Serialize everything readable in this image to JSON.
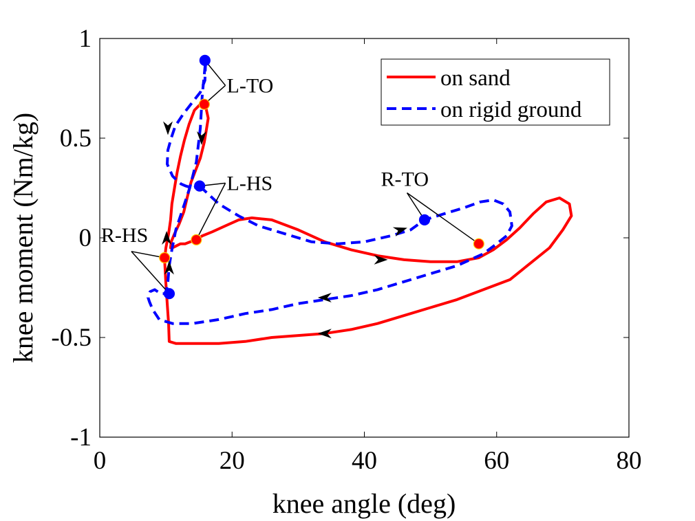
{
  "chart_data": {
    "type": "line",
    "title": "",
    "xlabel": "knee angle (deg)",
    "ylabel": "knee moment (Nm/kg)",
    "xlim": [
      0,
      80
    ],
    "ylim": [
      -1,
      1
    ],
    "xticks": [
      0,
      20,
      40,
      60,
      80
    ],
    "yticks": [
      -1,
      -0.5,
      0,
      0.5,
      1
    ],
    "xtick_labels": [
      "0",
      "20",
      "40",
      "60",
      "80"
    ],
    "ytick_labels": [
      "-1",
      "-0.5",
      "0",
      "0.5",
      "1"
    ],
    "legend_position": "top-right",
    "series": [
      {
        "name": "on sand",
        "color": "#ff0000",
        "style": "solid",
        "x": [
          14.6,
          15.5,
          17,
          19,
          21,
          23,
          26,
          30,
          34,
          38,
          42,
          46,
          50,
          54,
          57.3,
          59.5,
          61.5,
          63.5,
          65.5,
          67.5,
          69.5,
          71,
          71.3,
          70,
          68,
          65,
          62,
          58,
          54,
          50,
          46,
          42,
          38,
          34,
          30,
          26,
          22,
          18,
          14,
          11.5,
          10.5,
          10.4,
          10.2,
          10,
          9.8,
          10,
          10.4,
          10.7,
          10.9,
          11.3,
          11.7,
          12.2,
          12.8,
          13.5,
          14.3,
          15.2,
          16,
          16.4,
          16.1,
          15.8,
          15.2,
          14.5,
          13.8,
          13.2,
          12.7,
          12,
          11.3,
          10.8,
          10.7,
          11,
          11.6,
          12.2,
          12.9,
          13.7,
          14.6
        ],
        "y": [
          -0.01,
          0.01,
          0.03,
          0.06,
          0.09,
          0.1,
          0.09,
          0.04,
          -0.02,
          -0.06,
          -0.09,
          -0.11,
          -0.12,
          -0.12,
          -0.1,
          -0.06,
          -0.01,
          0.05,
          0.12,
          0.18,
          0.2,
          0.17,
          0.11,
          0.04,
          -0.05,
          -0.13,
          -0.21,
          -0.26,
          -0.31,
          -0.35,
          -0.39,
          -0.43,
          -0.46,
          -0.48,
          -0.49,
          -0.5,
          -0.52,
          -0.53,
          -0.53,
          -0.53,
          -0.52,
          -0.43,
          -0.33,
          -0.23,
          -0.11,
          -0.05,
          0.02,
          0.09,
          0.17,
          0.25,
          0.33,
          0.41,
          0.49,
          0.57,
          0.64,
          0.67,
          0.66,
          0.6,
          0.54,
          0.48,
          0.4,
          0.34,
          0.28,
          0.2,
          0.13,
          0.07,
          0.02,
          -0.02,
          -0.05,
          -0.05,
          -0.04,
          -0.03,
          -0.03,
          -0.02,
          -0.01
        ]
      },
      {
        "name": "on rigid ground",
        "color": "#0000ff",
        "style": "dashed",
        "x": [
          15.1,
          18,
          21,
          24,
          28,
          32,
          36,
          40,
          44,
          47,
          49.1,
          52,
          55,
          57.5,
          59.5,
          61,
          62,
          62.3,
          61.5,
          60,
          58,
          54,
          50,
          46,
          42,
          38,
          34,
          30,
          26,
          22,
          18,
          14,
          11,
          9,
          8,
          7.5,
          7.3,
          7.6,
          8.3,
          9.2,
          10,
          10.3,
          10.5,
          10.9,
          11.5,
          12.5,
          13.6,
          14.6,
          15.2,
          15.5,
          15.8,
          16,
          15.9,
          15.2,
          14,
          12.6,
          11.4,
          10.8,
          10.3,
          10.2,
          10.6,
          11,
          11.6,
          12.3,
          13,
          14,
          15.1
        ],
        "y": [
          0.26,
          0.17,
          0.11,
          0.06,
          0.02,
          -0.02,
          -0.03,
          -0.02,
          0.01,
          0.04,
          0.09,
          0.12,
          0.15,
          0.18,
          0.19,
          0.17,
          0.13,
          0.06,
          0.01,
          -0.03,
          -0.08,
          -0.14,
          -0.18,
          -0.22,
          -0.26,
          -0.29,
          -0.31,
          -0.33,
          -0.36,
          -0.38,
          -0.41,
          -0.43,
          -0.43,
          -0.41,
          -0.36,
          -0.32,
          -0.3,
          -0.27,
          -0.26,
          -0.28,
          -0.28,
          -0.22,
          -0.14,
          -0.06,
          0.04,
          0.14,
          0.25,
          0.38,
          0.55,
          0.72,
          0.82,
          0.89,
          0.79,
          0.73,
          0.68,
          0.62,
          0.56,
          0.5,
          0.44,
          0.37,
          0.34,
          0.31,
          0.29,
          0.27,
          0.26,
          0.25,
          0.26
        ]
      }
    ],
    "markers": [
      {
        "series": "on sand",
        "label": "L-TO",
        "x": 15.8,
        "y": 0.67
      },
      {
        "series": "on sand",
        "label": "L-HS",
        "x": 14.6,
        "y": -0.01
      },
      {
        "series": "on sand",
        "label": "R-TO",
        "x": 57.3,
        "y": -0.03
      },
      {
        "series": "on sand",
        "label": "R-HS",
        "x": 9.8,
        "y": -0.1
      },
      {
        "series": "on rigid ground",
        "label": "L-TO",
        "x": 15.9,
        "y": 0.89
      },
      {
        "series": "on rigid ground",
        "label": "L-HS",
        "x": 15.1,
        "y": 0.26
      },
      {
        "series": "on rigid ground",
        "label": "R-TO",
        "x": 49.1,
        "y": 0.09
      },
      {
        "series": "on rigid ground",
        "label": "R-HS",
        "x": 10.5,
        "y": -0.28
      }
    ],
    "annotations": [
      {
        "text": "L-TO",
        "x": 19.2,
        "y": 0.73,
        "targets": [
          [
            15.9,
            0.89
          ],
          [
            15.8,
            0.67
          ]
        ]
      },
      {
        "text": "L-HS",
        "x": 19.2,
        "y": 0.24,
        "targets": [
          [
            15.1,
            0.26
          ],
          [
            14.6,
            -0.01
          ]
        ]
      },
      {
        "text": "R-TO",
        "x": 42.5,
        "y": 0.26,
        "targets": [
          [
            49.1,
            0.09
          ],
          [
            57.3,
            -0.03
          ]
        ]
      },
      {
        "text": "R-HS",
        "x": 0.2,
        "y": -0.02,
        "targets": [
          [
            9.8,
            -0.1
          ],
          [
            10.5,
            -0.28
          ]
        ]
      }
    ],
    "direction_arrows": [
      {
        "series": "on sand",
        "x": 15.4,
        "y": 0.5,
        "dx": 0.0,
        "dy": -1
      },
      {
        "series": "on sand",
        "x": 42.5,
        "y": -0.11,
        "dx": 1,
        "dy": 0
      },
      {
        "series": "on sand",
        "x": 34,
        "y": -0.48,
        "dx": -1,
        "dy": 0
      },
      {
        "series": "on sand",
        "x": 10.1,
        "y": -0.0,
        "dx": 0,
        "dy": 1
      },
      {
        "series": "on rigid ground",
        "x": 10.3,
        "y": 0.55,
        "dx": 0,
        "dy": -1
      },
      {
        "series": "on rigid ground",
        "x": 45.5,
        "y": 0.04,
        "dx": 1,
        "dy": 0.3
      },
      {
        "series": "on rigid ground",
        "x": 34,
        "y": -0.3,
        "dx": -1,
        "dy": 0
      },
      {
        "series": "on rigid ground",
        "x": 10.5,
        "y": -0.15,
        "dx": 0,
        "dy": 1
      }
    ]
  }
}
